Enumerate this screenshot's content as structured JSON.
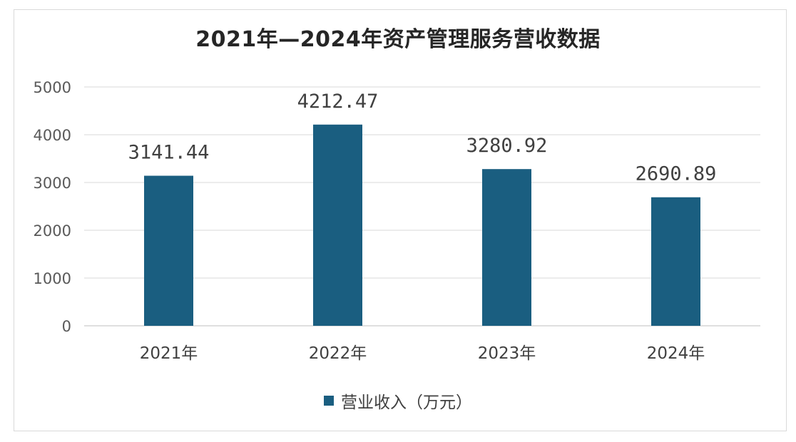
{
  "chart_data": {
    "type": "bar",
    "title": "2021年—2024年资产管理服务营收数据",
    "categories": [
      "2021年",
      "2022年",
      "2023年",
      "2024年"
    ],
    "series": [
      {
        "name": "营业收入（万元）",
        "values": [
          3141.44,
          4212.47,
          3280.92,
          2690.89
        ],
        "data_labels": [
          "3141.44",
          "4212.47",
          "3280.92",
          "2690.89"
        ],
        "color": "#1a5e80"
      }
    ],
    "ylim": [
      0,
      5000
    ],
    "yticks": [
      0,
      1000,
      2000,
      3000,
      4000,
      5000
    ],
    "grid": true,
    "legend_position": "bottom",
    "xlabel": "",
    "ylabel": ""
  }
}
